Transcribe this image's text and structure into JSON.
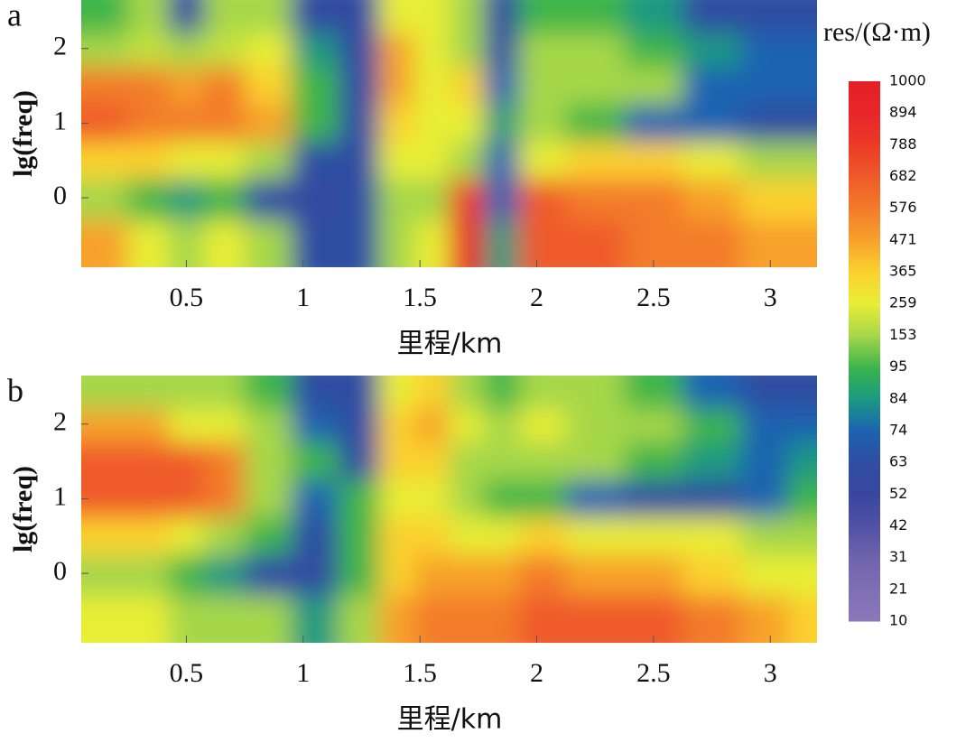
{
  "chart_data": [
    {
      "type": "heatmap",
      "label": "a",
      "xlabel": "里程/km",
      "ylabel": "lg(freq)",
      "xlim": [
        0.05,
        3.2
      ],
      "ylim": [
        -0.93,
        2.65
      ],
      "xticks": [
        0.5,
        1,
        1.5,
        2,
        2.5,
        3
      ],
      "yticks": [
        0,
        1,
        2
      ],
      "x": [
        0.15,
        0.35,
        0.5,
        0.65,
        0.85,
        1.05,
        1.25,
        1.4,
        1.55,
        1.7,
        1.85,
        2.0,
        2.25,
        2.5,
        2.75,
        3.0,
        3.15
      ],
      "y": [
        2.4,
        2.0,
        1.5,
        1.0,
        0.5,
        0.0,
        -0.6
      ],
      "values": [
        [
          95,
          153,
          60,
          153,
          153,
          60,
          60,
          259,
          259,
          153,
          60,
          95,
          95,
          84,
          63,
          63,
          63
        ],
        [
          153,
          200,
          150,
          200,
          259,
          84,
          60,
          471,
          259,
          153,
          60,
          153,
          153,
          95,
          84,
          74,
          74
        ],
        [
          576,
          576,
          471,
          576,
          365,
          95,
          63,
          471,
          259,
          365,
          74,
          153,
          153,
          153,
          74,
          74,
          74
        ],
        [
          682,
          576,
          576,
          576,
          471,
          95,
          63,
          365,
          259,
          259,
          84,
          153,
          95,
          74,
          74,
          63,
          63
        ],
        [
          365,
          365,
          259,
          259,
          153,
          63,
          63,
          259,
          259,
          153,
          74,
          259,
          365,
          365,
          259,
          153,
          153
        ],
        [
          153,
          95,
          84,
          95,
          63,
          60,
          63,
          153,
          153,
          788,
          74,
          682,
          576,
          576,
          471,
          365,
          365
        ],
        [
          471,
          259,
          153,
          259,
          153,
          63,
          63,
          153,
          259,
          894,
          84,
          682,
          682,
          576,
          576,
          471,
          471
        ]
      ]
    },
    {
      "type": "heatmap",
      "label": "b",
      "xlabel": "里程/km",
      "ylabel": "lg(freq)",
      "xlim": [
        0.05,
        3.2
      ],
      "ylim": [
        -0.93,
        2.65
      ],
      "xticks": [
        0.5,
        1,
        1.5,
        2,
        2.5,
        3
      ],
      "yticks": [
        0,
        1,
        2
      ],
      "x": [
        0.15,
        0.35,
        0.5,
        0.65,
        0.85,
        1.05,
        1.25,
        1.4,
        1.55,
        1.7,
        1.85,
        2.0,
        2.25,
        2.5,
        2.75,
        3.0,
        3.15
      ],
      "y": [
        2.4,
        2.0,
        1.5,
        1.0,
        0.5,
        0.0,
        -0.6
      ],
      "values": [
        [
          153,
          153,
          153,
          153,
          95,
          63,
          63,
          259,
          365,
          153,
          95,
          153,
          153,
          95,
          74,
          63,
          63
        ],
        [
          471,
          471,
          259,
          259,
          153,
          74,
          63,
          365,
          471,
          259,
          153,
          259,
          153,
          153,
          95,
          74,
          74
        ],
        [
          682,
          682,
          682,
          576,
          153,
          95,
          63,
          365,
          365,
          153,
          153,
          153,
          153,
          95,
          84,
          74,
          84
        ],
        [
          682,
          682,
          682,
          576,
          153,
          74,
          95,
          259,
          259,
          153,
          95,
          95,
          74,
          63,
          63,
          74,
          95
        ],
        [
          365,
          365,
          259,
          153,
          95,
          63,
          95,
          365,
          365,
          259,
          259,
          365,
          259,
          259,
          259,
          153,
          153
        ],
        [
          153,
          153,
          95,
          84,
          63,
          60,
          95,
          365,
          471,
          471,
          471,
          576,
          471,
          471,
          365,
          259,
          259
        ],
        [
          259,
          259,
          153,
          153,
          153,
          84,
          153,
          471,
          576,
          576,
          576,
          682,
          682,
          682,
          576,
          471,
          365
        ]
      ]
    }
  ],
  "colorbar": {
    "title": "res/(Ω·m)",
    "ticks": [
      1000,
      894,
      788,
      682,
      576,
      471,
      365,
      259,
      153,
      95,
      84,
      74,
      63,
      52,
      42,
      31,
      21,
      10
    ],
    "colors": [
      "#e41f26",
      "#e8262a",
      "#ec3a26",
      "#ef5a2a",
      "#f37b2a",
      "#f7a12c",
      "#fbd12e",
      "#e8ee35",
      "#a6d74a",
      "#3cb54a",
      "#1a9a80",
      "#1d63b1",
      "#2f4ea2",
      "#3946a0",
      "#5151a5",
      "#6e63ad",
      "#7f6fb5",
      "#8a78b9"
    ]
  }
}
